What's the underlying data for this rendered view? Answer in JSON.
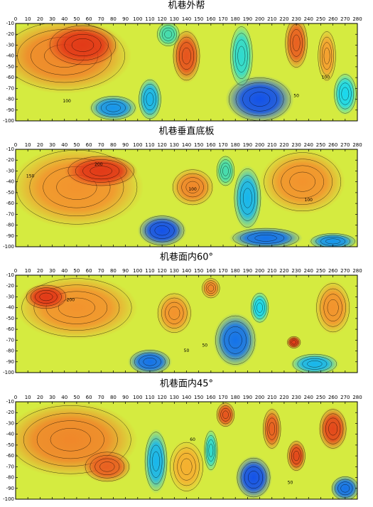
{
  "chart_data": [
    {
      "type": "contour",
      "title": "机巷外帮",
      "xlim": [
        0,
        280
      ],
      "ylim": [
        -10,
        -100
      ],
      "xticks": [
        0,
        10,
        20,
        30,
        40,
        50,
        60,
        70,
        80,
        90,
        100,
        110,
        120,
        130,
        140,
        150,
        160,
        170,
        180,
        190,
        200,
        210,
        220,
        230,
        240,
        250,
        260,
        270,
        280
      ],
      "yticks": [
        -10,
        -20,
        -30,
        -40,
        -50,
        -60,
        -70,
        -80,
        -90,
        -100
      ],
      "background": 70,
      "field": [
        {
          "x": 40,
          "y": -40,
          "rx": 55,
          "ry": 35,
          "value": 150
        },
        {
          "x": 55,
          "y": -30,
          "rx": 30,
          "ry": 20,
          "value": 210
        },
        {
          "x": 140,
          "y": -40,
          "rx": 12,
          "ry": 25,
          "value": 190
        },
        {
          "x": 230,
          "y": -28,
          "rx": 10,
          "ry": 25,
          "value": 180
        },
        {
          "x": 255,
          "y": -40,
          "rx": 8,
          "ry": 25,
          "value": 130
        },
        {
          "x": 200,
          "y": -80,
          "rx": 28,
          "ry": 22,
          "value": -40
        },
        {
          "x": 185,
          "y": -40,
          "rx": 10,
          "ry": 30,
          "value": 10
        },
        {
          "x": 80,
          "y": -88,
          "rx": 20,
          "ry": 12,
          "value": -20
        },
        {
          "x": 110,
          "y": -80,
          "rx": 10,
          "ry": 20,
          "value": -10
        },
        {
          "x": 125,
          "y": -20,
          "rx": 10,
          "ry": 12,
          "value": 20
        },
        {
          "x": 270,
          "y": -75,
          "rx": 10,
          "ry": 20,
          "value": 0
        }
      ],
      "annotations": [
        {
          "x": 42,
          "y": -82,
          "label": "100"
        },
        {
          "x": 230,
          "y": -77,
          "label": "50"
        },
        {
          "x": 254,
          "y": -60,
          "label": "100"
        }
      ]
    },
    {
      "type": "contour",
      "title": "机巷垂直底板",
      "xlim": [
        0,
        280
      ],
      "ylim": [
        -10,
        -100
      ],
      "xticks": [
        0,
        10,
        20,
        30,
        40,
        50,
        60,
        70,
        80,
        90,
        100,
        110,
        120,
        130,
        140,
        150,
        160,
        170,
        180,
        190,
        200,
        210,
        220,
        230,
        240,
        250,
        260,
        270,
        280
      ],
      "yticks": [
        -10,
        -20,
        -30,
        -40,
        -50,
        -60,
        -70,
        -80,
        -90,
        -100
      ],
      "background": 70,
      "field": [
        {
          "x": 50,
          "y": -45,
          "rx": 55,
          "ry": 38,
          "value": 140
        },
        {
          "x": 70,
          "y": -30,
          "rx": 30,
          "ry": 15,
          "value": 210
        },
        {
          "x": 145,
          "y": -45,
          "rx": 18,
          "ry": 18,
          "value": 150
        },
        {
          "x": 235,
          "y": -40,
          "rx": 35,
          "ry": 30,
          "value": 140
        },
        {
          "x": 190,
          "y": -55,
          "rx": 12,
          "ry": 30,
          "value": -10
        },
        {
          "x": 120,
          "y": -85,
          "rx": 20,
          "ry": 15,
          "value": -40
        },
        {
          "x": 205,
          "y": -92,
          "rx": 30,
          "ry": 10,
          "value": -30
        },
        {
          "x": 172,
          "y": -30,
          "rx": 8,
          "ry": 15,
          "value": 20
        },
        {
          "x": 260,
          "y": -95,
          "rx": 20,
          "ry": 8,
          "value": -20
        }
      ],
      "annotations": [
        {
          "x": 68,
          "y": -24,
          "label": "200"
        },
        {
          "x": 12,
          "y": -35,
          "label": "150"
        },
        {
          "x": 145,
          "y": -47,
          "label": "100"
        },
        {
          "x": 240,
          "y": -57,
          "label": "100"
        }
      ]
    },
    {
      "type": "contour",
      "title": "机巷面内60°",
      "xlim": [
        0,
        280
      ],
      "ylim": [
        -10,
        -100
      ],
      "xticks": [
        0,
        10,
        20,
        30,
        40,
        50,
        60,
        70,
        80,
        90,
        100,
        110,
        120,
        130,
        140,
        150,
        160,
        170,
        180,
        190,
        200,
        210,
        220,
        230,
        240,
        250,
        260,
        270,
        280
      ],
      "yticks": [
        -10,
        -20,
        -30,
        -40,
        -50,
        -60,
        -70,
        -80,
        -90,
        -100
      ],
      "background": 70,
      "field": [
        {
          "x": 50,
          "y": -40,
          "rx": 50,
          "ry": 30,
          "value": 140
        },
        {
          "x": 25,
          "y": -30,
          "rx": 18,
          "ry": 12,
          "value": 220
        },
        {
          "x": 130,
          "y": -45,
          "rx": 15,
          "ry": 20,
          "value": 140
        },
        {
          "x": 160,
          "y": -22,
          "rx": 8,
          "ry": 10,
          "value": 150
        },
        {
          "x": 228,
          "y": -72,
          "rx": 6,
          "ry": 6,
          "value": 210
        },
        {
          "x": 260,
          "y": -40,
          "rx": 15,
          "ry": 25,
          "value": 140
        },
        {
          "x": 110,
          "y": -90,
          "rx": 18,
          "ry": 12,
          "value": -30
        },
        {
          "x": 180,
          "y": -70,
          "rx": 18,
          "ry": 25,
          "value": -30
        },
        {
          "x": 200,
          "y": -40,
          "rx": 8,
          "ry": 15,
          "value": 0
        },
        {
          "x": 245,
          "y": -92,
          "rx": 20,
          "ry": 10,
          "value": -10
        }
      ],
      "annotations": [
        {
          "x": 45,
          "y": -33,
          "label": "200"
        },
        {
          "x": 140,
          "y": -80,
          "label": "50"
        },
        {
          "x": 155,
          "y": -75,
          "label": "50"
        }
      ]
    },
    {
      "type": "contour",
      "title": "机巷面内45°",
      "xlim": [
        0,
        280
      ],
      "ylim": [
        -10,
        -100
      ],
      "xticks": [
        0,
        10,
        20,
        30,
        40,
        50,
        60,
        70,
        80,
        90,
        100,
        110,
        120,
        130,
        140,
        150,
        160,
        170,
        180,
        190,
        200,
        210,
        220,
        230,
        240,
        250,
        260,
        270,
        280
      ],
      "yticks": [
        -10,
        -20,
        -30,
        -40,
        -50,
        -60,
        -70,
        -80,
        -90,
        -100
      ],
      "background": 70,
      "field": [
        {
          "x": 45,
          "y": -45,
          "rx": 55,
          "ry": 35,
          "value": 150
        },
        {
          "x": 75,
          "y": -70,
          "rx": 20,
          "ry": 15,
          "value": 180
        },
        {
          "x": 172,
          "y": -22,
          "rx": 8,
          "ry": 12,
          "value": 190
        },
        {
          "x": 210,
          "y": -35,
          "rx": 8,
          "ry": 20,
          "value": 180
        },
        {
          "x": 230,
          "y": -60,
          "rx": 8,
          "ry": 15,
          "value": 200
        },
        {
          "x": 260,
          "y": -35,
          "rx": 12,
          "ry": 20,
          "value": 200
        },
        {
          "x": 140,
          "y": -70,
          "rx": 15,
          "ry": 25,
          "value": 120
        },
        {
          "x": 195,
          "y": -80,
          "rx": 15,
          "ry": 20,
          "value": -40
        },
        {
          "x": 115,
          "y": -65,
          "rx": 10,
          "ry": 30,
          "value": -10
        },
        {
          "x": 270,
          "y": -90,
          "rx": 12,
          "ry": 12,
          "value": -30
        },
        {
          "x": 160,
          "y": -55,
          "rx": 6,
          "ry": 20,
          "value": 10
        }
      ],
      "annotations": [
        {
          "x": 145,
          "y": -45,
          "label": "60"
        },
        {
          "x": 225,
          "y": -85,
          "label": "50"
        }
      ]
    }
  ],
  "colorscale": [
    {
      "value": -50,
      "color": "#1230e8"
    },
    {
      "value": 0,
      "color": "#18d8f0"
    },
    {
      "value": 40,
      "color": "#70e070"
    },
    {
      "value": 80,
      "color": "#f6ee30"
    },
    {
      "value": 130,
      "color": "#f5a030"
    },
    {
      "value": 210,
      "color": "#e23a18"
    }
  ]
}
